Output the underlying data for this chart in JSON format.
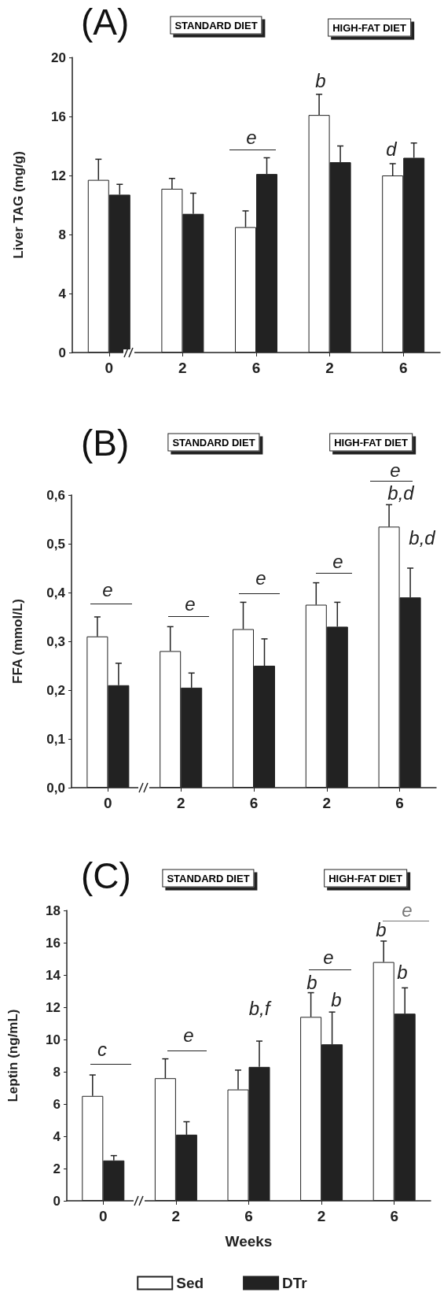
{
  "chart_data": [
    {
      "type": "bar",
      "title": "(A)",
      "ylabel": "Liver TAG (mg/g)",
      "categories": [
        "0",
        "2",
        "6",
        "2",
        "6"
      ],
      "ylim": [
        0,
        20
      ],
      "yticks": [
        0,
        4,
        8,
        12,
        16,
        20
      ],
      "series": [
        {
          "color": "#ffffff",
          "values": [
            11.7,
            11.1,
            8.5,
            16.1,
            12.0
          ],
          "errors": [
            [
              11.7,
              13.1
            ],
            [
              11.1,
              11.8
            ],
            [
              8.5,
              9.6
            ],
            [
              16.1,
              17.5
            ],
            [
              12.0,
              12.8
            ]
          ]
        },
        {
          "color": "#222222",
          "values": [
            10.7,
            9.4,
            12.1,
            12.9,
            13.2
          ],
          "errors": [
            [
              10.7,
              11.4
            ],
            [
              9.4,
              10.8
            ],
            [
              12.1,
              13.2
            ],
            [
              12.9,
              14.0
            ],
            [
              13.2,
              14.2
            ]
          ]
        }
      ],
      "annotations": [
        "STANDARD DIET",
        "HIGH-FAT DIET",
        "e",
        "b",
        "d"
      ]
    },
    {
      "type": "bar",
      "title": "(B)",
      "ylabel": "FFA (mmol/L)",
      "categories": [
        "0",
        "2",
        "6",
        "2",
        "6"
      ],
      "ylim": [
        0,
        0.6
      ],
      "yticks": [
        {
          "value": 0,
          "label": "0,0"
        },
        {
          "value": 0.1,
          "label": "0,1"
        },
        {
          "value": 0.2,
          "label": "0,2"
        },
        {
          "value": 0.3,
          "label": "0,3"
        },
        {
          "value": 0.4,
          "label": "0,4"
        },
        {
          "value": 0.5,
          "label": "0,5"
        },
        {
          "value": 0.6,
          "label": "0,6"
        }
      ],
      "series": [
        {
          "color": "#ffffff",
          "values": [
            0.31,
            0.28,
            0.325,
            0.375,
            0.535
          ],
          "errors": [
            [
              0.31,
              0.35
            ],
            [
              0.28,
              0.33
            ],
            [
              0.325,
              0.38
            ],
            [
              0.375,
              0.42
            ],
            [
              0.535,
              0.58
            ]
          ]
        },
        {
          "color": "#222222",
          "values": [
            0.21,
            0.205,
            0.25,
            0.33,
            0.39
          ],
          "errors": [
            [
              0.21,
              0.255
            ],
            [
              0.205,
              0.235
            ],
            [
              0.25,
              0.305
            ],
            [
              0.33,
              0.38
            ],
            [
              0.39,
              0.45
            ]
          ]
        }
      ],
      "annotations": [
        "STANDARD DIET",
        "HIGH-FAT DIET",
        "e",
        "e",
        "e",
        "e",
        "e",
        "b,d",
        "b,d"
      ]
    },
    {
      "type": "bar",
      "title": "(C)",
      "xlabel": "Weeks",
      "ylabel": "Leptin (ng/mL)",
      "categories": [
        "0",
        "2",
        "6",
        "2",
        "6"
      ],
      "ylim": [
        0,
        18
      ],
      "yticks": [
        0,
        2,
        4,
        6,
        8,
        10,
        12,
        14,
        16,
        18
      ],
      "legend": "bottom",
      "series": [
        {
          "name": "Sed",
          "color": "#ffffff",
          "values": [
            6.5,
            7.6,
            6.9,
            11.4,
            14.8
          ],
          "errors": [
            [
              6.5,
              7.8
            ],
            [
              7.6,
              8.8
            ],
            [
              6.9,
              8.1
            ],
            [
              11.4,
              12.9
            ],
            [
              14.8,
              16.1
            ]
          ]
        },
        {
          "name": "DTr",
          "color": "#222222",
          "values": [
            2.5,
            4.1,
            8.3,
            9.7,
            11.6
          ],
          "errors": [
            [
              2.5,
              2.8
            ],
            [
              4.1,
              4.9
            ],
            [
              8.3,
              9.9
            ],
            [
              9.7,
              11.7
            ],
            [
              11.6,
              13.2
            ]
          ]
        }
      ],
      "annotations": [
        "STANDARD DIET",
        "HIGH-FAT DIET",
        "c",
        "e",
        "b,f",
        "e",
        "b",
        "b",
        "b",
        "e",
        "b"
      ]
    }
  ]
}
